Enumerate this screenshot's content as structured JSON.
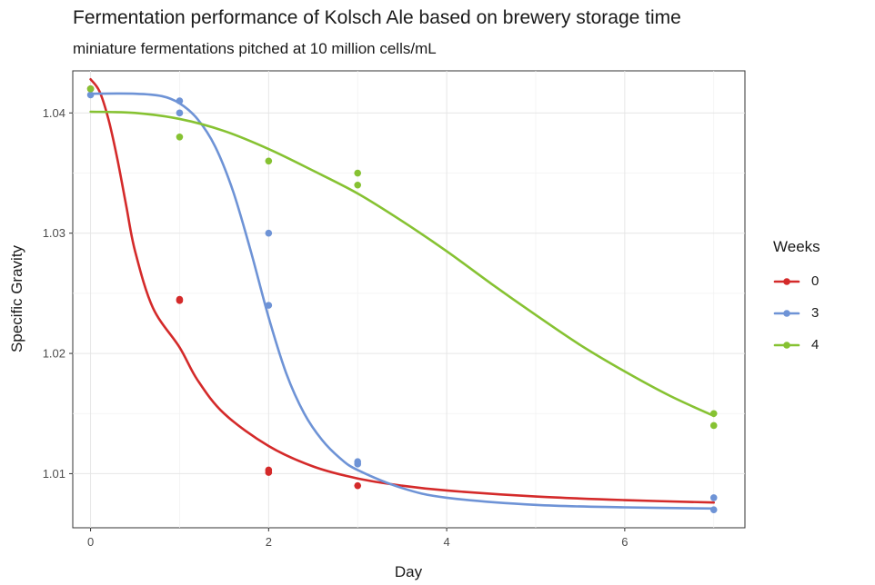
{
  "chart_data": {
    "type": "line",
    "title": "Fermentation performance of Kolsch Ale based on brewery storage time",
    "subtitle": "miniature fermentations pitched at 10 million cells/mL",
    "xlabel": "Day",
    "ylabel": "Specific Gravity",
    "xlim": [
      -0.2,
      7.35
    ],
    "ylim": [
      1.0055,
      1.0435
    ],
    "x_ticks": [
      0,
      2,
      4,
      6
    ],
    "x_tick_labels": [
      "0",
      "2",
      "4",
      "6"
    ],
    "y_ticks": [
      1.01,
      1.02,
      1.03,
      1.04
    ],
    "y_tick_labels": [
      "1.01",
      "1.02",
      "1.03",
      "1.04"
    ],
    "grid": true,
    "legend": {
      "title": "Weeks",
      "position": "right"
    },
    "series": [
      {
        "name": "0",
        "color": "#d42a2a",
        "points": [
          {
            "x": 0,
            "y": 1.042
          },
          {
            "x": 1,
            "y": 1.0245
          },
          {
            "x": 1,
            "y": 1.0244
          },
          {
            "x": 2,
            "y": 1.0103
          },
          {
            "x": 2,
            "y": 1.0101
          },
          {
            "x": 3,
            "y": 1.009
          }
        ],
        "fit": [
          {
            "x": 0,
            "y": 1.0428
          },
          {
            "x": 0.1,
            "y": 1.0418
          },
          {
            "x": 0.2,
            "y": 1.0395
          },
          {
            "x": 0.3,
            "y": 1.0362
          },
          {
            "x": 0.4,
            "y": 1.0323
          },
          {
            "x": 0.5,
            "y": 1.0285
          },
          {
            "x": 0.7,
            "y": 1.0238
          },
          {
            "x": 1.0,
            "y": 1.0205
          },
          {
            "x": 1.2,
            "y": 1.0178
          },
          {
            "x": 1.5,
            "y": 1.015
          },
          {
            "x": 2.0,
            "y": 1.0123
          },
          {
            "x": 2.5,
            "y": 1.0106
          },
          {
            "x": 3.0,
            "y": 1.0096
          },
          {
            "x": 3.5,
            "y": 1.009
          },
          {
            "x": 4.0,
            "y": 1.0086
          },
          {
            "x": 5.0,
            "y": 1.0081
          },
          {
            "x": 6.0,
            "y": 1.0078
          },
          {
            "x": 7.0,
            "y": 1.0076
          }
        ]
      },
      {
        "name": "3",
        "color": "#6e93d6",
        "points": [
          {
            "x": 0,
            "y": 1.0415
          },
          {
            "x": 1,
            "y": 1.041
          },
          {
            "x": 1,
            "y": 1.04
          },
          {
            "x": 2,
            "y": 1.03
          },
          {
            "x": 2,
            "y": 1.024
          },
          {
            "x": 3,
            "y": 1.011
          },
          {
            "x": 3,
            "y": 1.0108
          },
          {
            "x": 7,
            "y": 1.008
          },
          {
            "x": 7,
            "y": 1.007
          }
        ],
        "fit": [
          {
            "x": 0,
            "y": 1.0416
          },
          {
            "x": 0.5,
            "y": 1.0416
          },
          {
            "x": 0.8,
            "y": 1.0414
          },
          {
            "x": 1.0,
            "y": 1.0408
          },
          {
            "x": 1.2,
            "y": 1.0395
          },
          {
            "x": 1.4,
            "y": 1.0372
          },
          {
            "x": 1.6,
            "y": 1.0335
          },
          {
            "x": 1.8,
            "y": 1.0285
          },
          {
            "x": 2.0,
            "y": 1.023
          },
          {
            "x": 2.2,
            "y": 1.0183
          },
          {
            "x": 2.4,
            "y": 1.015
          },
          {
            "x": 2.6,
            "y": 1.0128
          },
          {
            "x": 2.8,
            "y": 1.0113
          },
          {
            "x": 3.0,
            "y": 1.0103
          },
          {
            "x": 3.5,
            "y": 1.0088
          },
          {
            "x": 4.0,
            "y": 1.008
          },
          {
            "x": 5.0,
            "y": 1.0074
          },
          {
            "x": 6.0,
            "y": 1.0072
          },
          {
            "x": 7.0,
            "y": 1.0071
          }
        ]
      },
      {
        "name": "4",
        "color": "#86c232",
        "points": [
          {
            "x": 0,
            "y": 1.042
          },
          {
            "x": 1,
            "y": 1.038
          },
          {
            "x": 2,
            "y": 1.036
          },
          {
            "x": 3,
            "y": 1.035
          },
          {
            "x": 3,
            "y": 1.034
          },
          {
            "x": 7,
            "y": 1.015
          },
          {
            "x": 7,
            "y": 1.014
          }
        ],
        "fit": [
          {
            "x": 0,
            "y": 1.0401
          },
          {
            "x": 0.5,
            "y": 1.04
          },
          {
            "x": 1.0,
            "y": 1.0395
          },
          {
            "x": 1.5,
            "y": 1.0385
          },
          {
            "x": 2.0,
            "y": 1.037
          },
          {
            "x": 2.5,
            "y": 1.0352
          },
          {
            "x": 3.0,
            "y": 1.0333
          },
          {
            "x": 3.5,
            "y": 1.031
          },
          {
            "x": 4.0,
            "y": 1.0285
          },
          {
            "x": 4.5,
            "y": 1.0258
          },
          {
            "x": 5.0,
            "y": 1.0232
          },
          {
            "x": 5.5,
            "y": 1.0207
          },
          {
            "x": 6.0,
            "y": 1.0185
          },
          {
            "x": 6.5,
            "y": 1.0165
          },
          {
            "x": 7.0,
            "y": 1.0148
          }
        ]
      }
    ]
  }
}
